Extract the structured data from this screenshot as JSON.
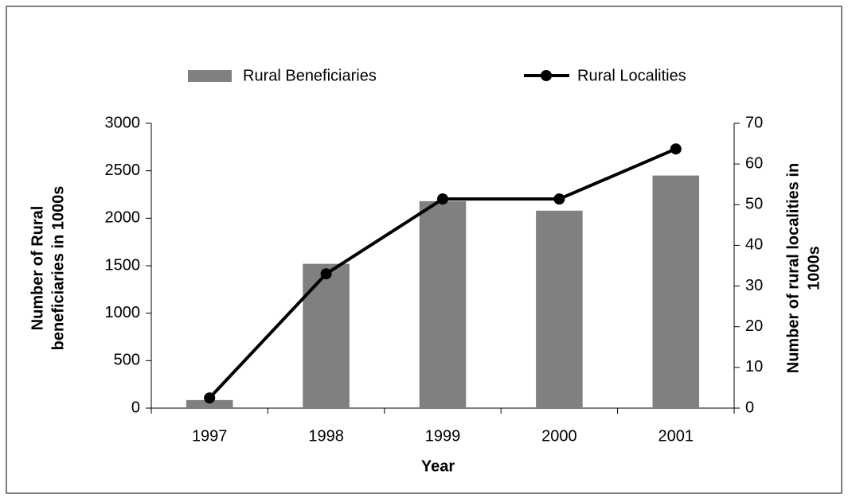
{
  "chart_data": {
    "type": "bar-line",
    "categories": [
      "1997",
      "1998",
      "1999",
      "2000",
      "2001"
    ],
    "series": [
      {
        "name": "Rural Beneficiaries",
        "type": "bar",
        "color": "#808080",
        "values": [
          85,
          1520,
          2180,
          2080,
          2450
        ]
      },
      {
        "name": "Rural Localities",
        "type": "line",
        "axis": "y2",
        "color": "#000000",
        "values": [
          2.5,
          33,
          51.4,
          51.4,
          63.7
        ]
      }
    ],
    "xlabel": "Year",
    "ylabel": [
      "Number of Rural",
      "beneficiaries in 1000s"
    ],
    "y2label": [
      "Number of rural localities in",
      "1000s"
    ],
    "ylim": [
      0,
      3000
    ],
    "yticks": [
      0,
      500,
      1000,
      1500,
      2000,
      2500,
      3000
    ],
    "y2lim": [
      0,
      70
    ],
    "y2ticks": [
      0,
      10,
      20,
      30,
      40,
      50,
      60,
      70
    ],
    "grid": false,
    "legend": "top"
  }
}
